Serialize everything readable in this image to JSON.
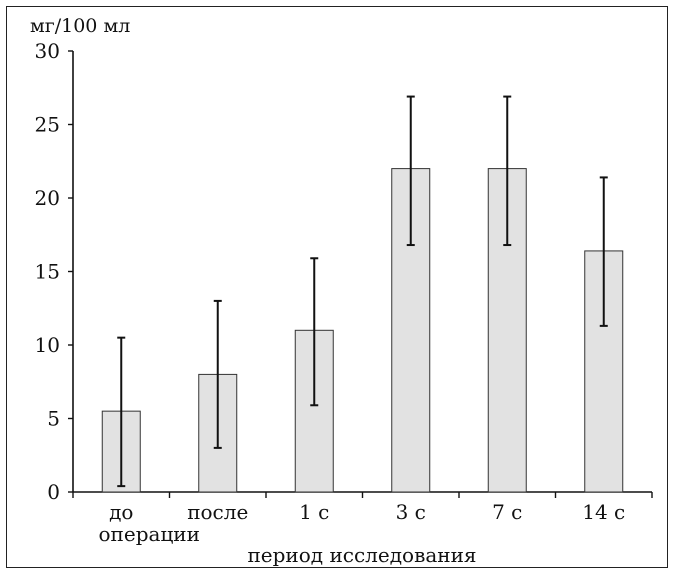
{
  "chart_data": {
    "type": "bar",
    "unit_label": "мг/100 мл",
    "xlabel": "период исследования",
    "ylabel": "",
    "ylim": [
      0,
      30
    ],
    "yticks": [
      0,
      5,
      10,
      15,
      20,
      25,
      30
    ],
    "grid": false,
    "categories": [
      [
        "до",
        "операции"
      ],
      [
        "после"
      ],
      [
        "1 с"
      ],
      [
        "3 с"
      ],
      [
        "7 с"
      ],
      [
        "14 с"
      ]
    ],
    "values": [
      5.5,
      8.0,
      11.0,
      22.0,
      22.0,
      16.4
    ],
    "error_low": [
      0.4,
      3.0,
      5.9,
      16.8,
      16.8,
      11.3
    ],
    "error_high": [
      10.5,
      13.0,
      15.9,
      26.9,
      26.9,
      21.4
    ],
    "bar_color": "#e2e2e2",
    "bar_stroke": "#333333"
  }
}
